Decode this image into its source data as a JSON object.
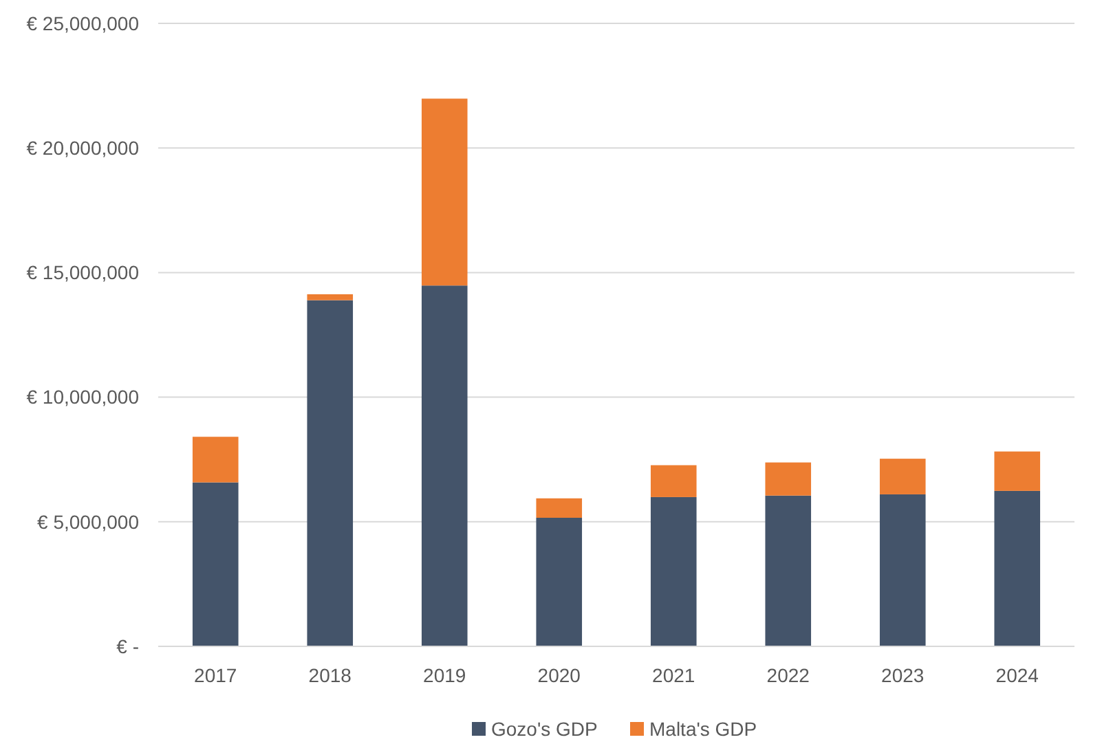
{
  "chart_data": {
    "type": "bar",
    "stacked": true,
    "categories": [
      "2017",
      "2018",
      "2019",
      "2020",
      "2021",
      "2022",
      "2023",
      "2024"
    ],
    "series": [
      {
        "name": "Gozo's GDP",
        "color": "#44546a",
        "values": [
          6580000,
          13890000,
          14480000,
          5160000,
          5990000,
          6050000,
          6100000,
          6240000
        ]
      },
      {
        "name": "Malta's GDP",
        "color": "#ed7d31",
        "values": [
          1830000,
          240000,
          7500000,
          780000,
          1280000,
          1330000,
          1430000,
          1580000
        ]
      }
    ],
    "ylim": [
      0,
      25000000
    ],
    "yticks": [
      {
        "value": 0,
        "label": "€ -"
      },
      {
        "value": 5000000,
        "label": "€ 5,000,000"
      },
      {
        "value": 10000000,
        "label": "€ 10,000,000"
      },
      {
        "value": 15000000,
        "label": "€ 15,000,000"
      },
      {
        "value": 20000000,
        "label": "€ 20,000,000"
      },
      {
        "value": 25000000,
        "label": "€ 25,000,000"
      }
    ],
    "grid": "y",
    "legend": "bottom"
  }
}
